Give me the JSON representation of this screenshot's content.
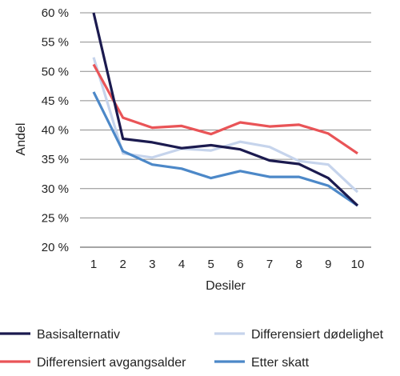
{
  "chart_data": {
    "type": "line",
    "title": "",
    "xlabel": "Desiler",
    "ylabel": "Andel",
    "x": [
      1,
      2,
      3,
      4,
      5,
      6,
      7,
      8,
      9,
      10
    ],
    "x_tick_labels": [
      "1",
      "2",
      "3",
      "4",
      "5",
      "6",
      "7",
      "8",
      "9",
      "10"
    ],
    "ylim": [
      20,
      60
    ],
    "y_ticks": [
      20,
      25,
      30,
      35,
      40,
      45,
      50,
      55,
      60
    ],
    "y_tick_labels": [
      "20 %",
      "25 %",
      "30 %",
      "35 %",
      "40 %",
      "45 %",
      "50 %",
      "55 %",
      "60 %"
    ],
    "grid": "horizontal",
    "legend_position": "bottom",
    "series": [
      {
        "name": "Basisalternativ",
        "color": "#1b1a4f",
        "values": [
          60.0,
          38.5,
          37.9,
          36.9,
          37.4,
          36.7,
          34.8,
          34.2,
          31.8,
          27.1
        ]
      },
      {
        "name": "Differensiert dødelighet",
        "color": "#c6d4ec",
        "values": [
          52.4,
          36.0,
          35.3,
          36.8,
          36.5,
          38.0,
          37.1,
          34.7,
          34.1,
          29.4
        ]
      },
      {
        "name": "Differensiert avgangsalder",
        "color": "#e95457",
        "values": [
          51.2,
          42.1,
          40.4,
          40.7,
          39.3,
          41.3,
          40.6,
          40.9,
          39.4,
          36.0
        ]
      },
      {
        "name": "Etter skatt",
        "color": "#4c88c8",
        "values": [
          46.5,
          36.4,
          34.1,
          33.4,
          31.8,
          33.0,
          32.0,
          32.0,
          30.5,
          27.1
        ]
      }
    ],
    "legend_order": [
      0,
      1,
      2,
      3
    ]
  }
}
